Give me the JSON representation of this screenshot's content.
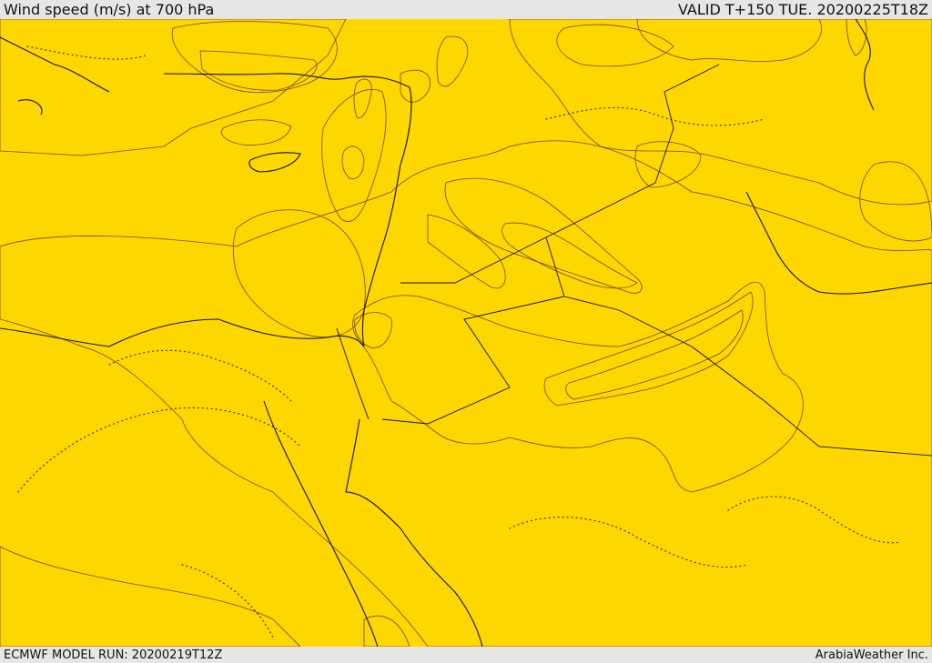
{
  "header": {
    "title": "Wind speed (m/s) at 700 hPa",
    "valid": "VALID T+150 TUE. 20200225T18Z"
  },
  "footer": {
    "model_run": "ECMWF MODEL RUN: 20200219T12Z",
    "credit": "ArabiaWeather Inc."
  },
  "colors": {
    "band_lowest": "#ffff00",
    "band_low": "#ffd700",
    "band_mid": "#ffb400",
    "band_high": "#ff9900",
    "band_higher": "#ff7e10",
    "band_highest": "#ff6200",
    "band_calm": "#ffe0b0",
    "band_white": "#ffffff"
  }
}
